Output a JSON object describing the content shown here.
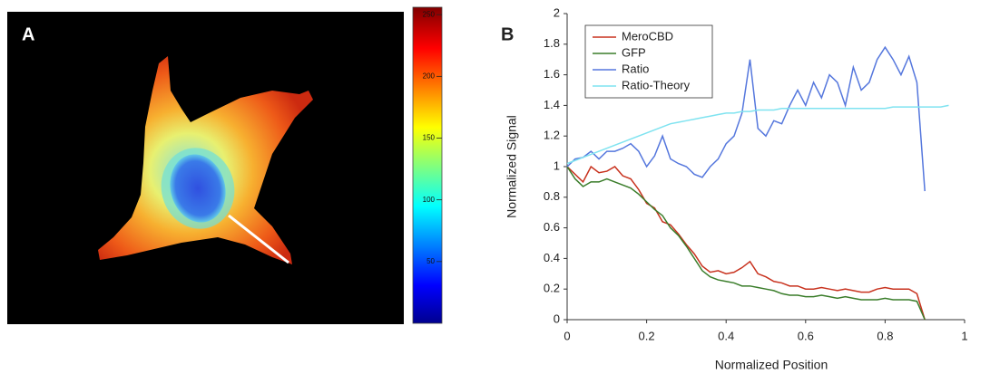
{
  "chart_data": [
    {
      "type": "image",
      "label": "A",
      "colorbar": {
        "clim": [
          0,
          256
        ],
        "ticks": [
          50,
          100,
          150,
          200,
          250
        ]
      }
    },
    {
      "type": "line",
      "label": "B",
      "x_label": "Normalized Position",
      "y_label": "Normalized Signal",
      "x": [
        0,
        0.02,
        0.04,
        0.06,
        0.08,
        0.1,
        0.12,
        0.14,
        0.16,
        0.18,
        0.2,
        0.22,
        0.24,
        0.26,
        0.28,
        0.3,
        0.32,
        0.34,
        0.36,
        0.38,
        0.4,
        0.42,
        0.44,
        0.46,
        0.48,
        0.5,
        0.52,
        0.54,
        0.56,
        0.58,
        0.6,
        0.62,
        0.64,
        0.66,
        0.68,
        0.7,
        0.72,
        0.74,
        0.76,
        0.78,
        0.8,
        0.82,
        0.84,
        0.86,
        0.88,
        0.9,
        0.92,
        0.94,
        0.96
      ],
      "series": [
        {
          "name": "MeroCBD",
          "color": "#c8321e",
          "values": [
            1.0,
            0.95,
            0.9,
            1.0,
            0.96,
            0.97,
            1.0,
            0.94,
            0.92,
            0.85,
            0.76,
            0.73,
            0.64,
            0.62,
            0.56,
            0.49,
            0.43,
            0.35,
            0.31,
            0.32,
            0.3,
            0.31,
            0.34,
            0.38,
            0.3,
            0.28,
            0.25,
            0.24,
            0.22,
            0.22,
            0.2,
            0.2,
            0.21,
            0.2,
            0.19,
            0.2,
            0.19,
            0.18,
            0.18,
            0.2,
            0.21,
            0.2,
            0.2,
            0.2,
            0.17,
            0.0,
            null,
            null,
            null
          ]
        },
        {
          "name": "GFP",
          "color": "#3a7d2a",
          "values": [
            1.0,
            0.92,
            0.87,
            0.9,
            0.9,
            0.92,
            0.9,
            0.88,
            0.86,
            0.82,
            0.77,
            0.72,
            0.68,
            0.6,
            0.55,
            0.48,
            0.4,
            0.32,
            0.28,
            0.26,
            0.25,
            0.24,
            0.22,
            0.22,
            0.21,
            0.2,
            0.19,
            0.17,
            0.16,
            0.16,
            0.15,
            0.15,
            0.16,
            0.15,
            0.14,
            0.15,
            0.14,
            0.13,
            0.13,
            0.13,
            0.14,
            0.13,
            0.13,
            0.13,
            0.12,
            0.0,
            null,
            null,
            null
          ]
        },
        {
          "name": "Ratio",
          "color": "#5577dd",
          "values": [
            1.0,
            1.05,
            1.06,
            1.1,
            1.05,
            1.1,
            1.1,
            1.12,
            1.15,
            1.1,
            1.0,
            1.07,
            1.2,
            1.05,
            1.02,
            1.0,
            0.95,
            0.93,
            1.0,
            1.05,
            1.15,
            1.2,
            1.35,
            1.7,
            1.25,
            1.2,
            1.3,
            1.28,
            1.4,
            1.5,
            1.4,
            1.55,
            1.45,
            1.6,
            1.55,
            1.4,
            1.65,
            1.5,
            1.55,
            1.7,
            1.78,
            1.7,
            1.6,
            1.72,
            1.55,
            0.84,
            null,
            null,
            null
          ]
        },
        {
          "name": "Ratio-Theory",
          "color": "#7fe3f0",
          "values": [
            1.02,
            1.04,
            1.06,
            1.08,
            1.1,
            1.12,
            1.14,
            1.16,
            1.18,
            1.2,
            1.22,
            1.24,
            1.26,
            1.28,
            1.29,
            1.3,
            1.31,
            1.32,
            1.33,
            1.34,
            1.35,
            1.35,
            1.36,
            1.36,
            1.37,
            1.37,
            1.37,
            1.38,
            1.38,
            1.38,
            1.38,
            1.38,
            1.38,
            1.38,
            1.38,
            1.38,
            1.38,
            1.38,
            1.38,
            1.38,
            1.38,
            1.39,
            1.39,
            1.39,
            1.39,
            1.39,
            1.39,
            1.39,
            1.4
          ]
        }
      ],
      "xlim": [
        0,
        1
      ],
      "xticks": [
        0,
        0.2,
        0.4,
        0.6,
        0.8,
        1
      ],
      "ylim": [
        0,
        2
      ],
      "yticks": [
        0,
        0.2,
        0.4,
        0.6,
        0.8,
        1,
        1.2,
        1.4,
        1.6,
        1.8,
        2
      ],
      "grid": false,
      "legend": "upper left"
    }
  ]
}
